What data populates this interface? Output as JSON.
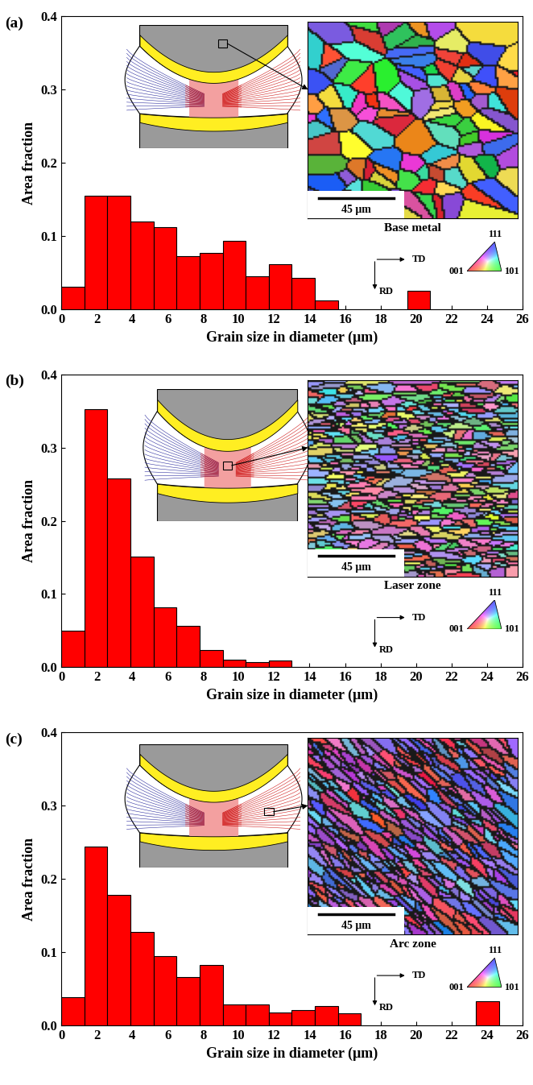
{
  "chart_data": [
    {
      "type": "histogram",
      "panel_label": "(a)",
      "inset_label": "Base metal",
      "scale_bar_label": "45 μm",
      "direction_labels": [
        "TD",
        "RD"
      ],
      "ipf_labels": [
        "111",
        "001",
        "101"
      ],
      "xlabel": "Grain size in diameter (μm)",
      "ylabel": "Area fraction",
      "bins": [
        0,
        1.3,
        2.6,
        3.9,
        5.2,
        6.5,
        7.8,
        9.1,
        10.4,
        11.7,
        13,
        14.3,
        15.6,
        16.9,
        18.2,
        19.5,
        20.8,
        22.1,
        23.4,
        24.7,
        26
      ],
      "values": [
        0.031,
        0.155,
        0.155,
        0.12,
        0.112,
        0.072,
        0.077,
        0.093,
        0.045,
        0.061,
        0.043,
        0.012,
        0,
        0,
        0,
        0.025,
        0,
        0,
        0,
        0
      ],
      "color": "#ff0000",
      "xlim": [
        0,
        26
      ],
      "ylim": [
        0,
        0.4
      ],
      "xticks": [
        0,
        2,
        4,
        6,
        8,
        10,
        12,
        14,
        16,
        18,
        20,
        22,
        24,
        26
      ],
      "yticks": [
        0.0,
        0.1,
        0.2,
        0.3,
        0.4
      ]
    },
    {
      "type": "histogram",
      "panel_label": "(b)",
      "inset_label": "Laser zone",
      "scale_bar_label": "45 μm",
      "direction_labels": [
        "TD",
        "RD"
      ],
      "ipf_labels": [
        "111",
        "001",
        "101"
      ],
      "xlabel": "Grain size in diameter (μm)",
      "ylabel": "Area fraction",
      "bins": [
        0,
        1.3,
        2.6,
        3.9,
        5.2,
        6.5,
        7.8,
        9.1,
        10.4,
        11.7,
        13,
        14.3,
        15.6,
        16.9,
        18.2,
        19.5,
        20.8,
        22.1,
        23.4,
        24.7,
        26
      ],
      "values": [
        0.05,
        0.352,
        0.258,
        0.151,
        0.082,
        0.056,
        0.023,
        0.01,
        0.007,
        0.009,
        0,
        0,
        0,
        0,
        0,
        0,
        0,
        0,
        0,
        0
      ],
      "color": "#ff0000",
      "xlim": [
        0,
        26
      ],
      "ylim": [
        0,
        0.4
      ],
      "xticks": [
        0,
        2,
        4,
        6,
        8,
        10,
        12,
        14,
        16,
        18,
        20,
        22,
        24,
        26
      ],
      "yticks": [
        0.0,
        0.1,
        0.2,
        0.3,
        0.4
      ]
    },
    {
      "type": "histogram",
      "panel_label": "(c)",
      "inset_label": "Arc zone",
      "scale_bar_label": "45 μm",
      "direction_labels": [
        "TD",
        "RD"
      ],
      "ipf_labels": [
        "111",
        "001",
        "101"
      ],
      "xlabel": "Grain size in diameter (μm)",
      "ylabel": "Area fraction",
      "bins": [
        0,
        1.3,
        2.6,
        3.9,
        5.2,
        6.5,
        7.8,
        9.1,
        10.4,
        11.7,
        13,
        14.3,
        15.6,
        16.9,
        18.2,
        19.5,
        20.8,
        22.1,
        23.4,
        24.7,
        26
      ],
      "values": [
        0.038,
        0.244,
        0.178,
        0.127,
        0.095,
        0.066,
        0.082,
        0.028,
        0.028,
        0.017,
        0.021,
        0.026,
        0.016,
        0,
        0,
        0,
        0,
        0,
        0.033,
        0
      ],
      "color": "#ff0000",
      "xlim": [
        0,
        26
      ],
      "ylim": [
        0,
        0.4
      ],
      "xticks": [
        0,
        2,
        4,
        6,
        8,
        10,
        12,
        14,
        16,
        18,
        20,
        22,
        24,
        26
      ],
      "yticks": [
        0.0,
        0.1,
        0.2,
        0.3,
        0.4
      ]
    }
  ]
}
